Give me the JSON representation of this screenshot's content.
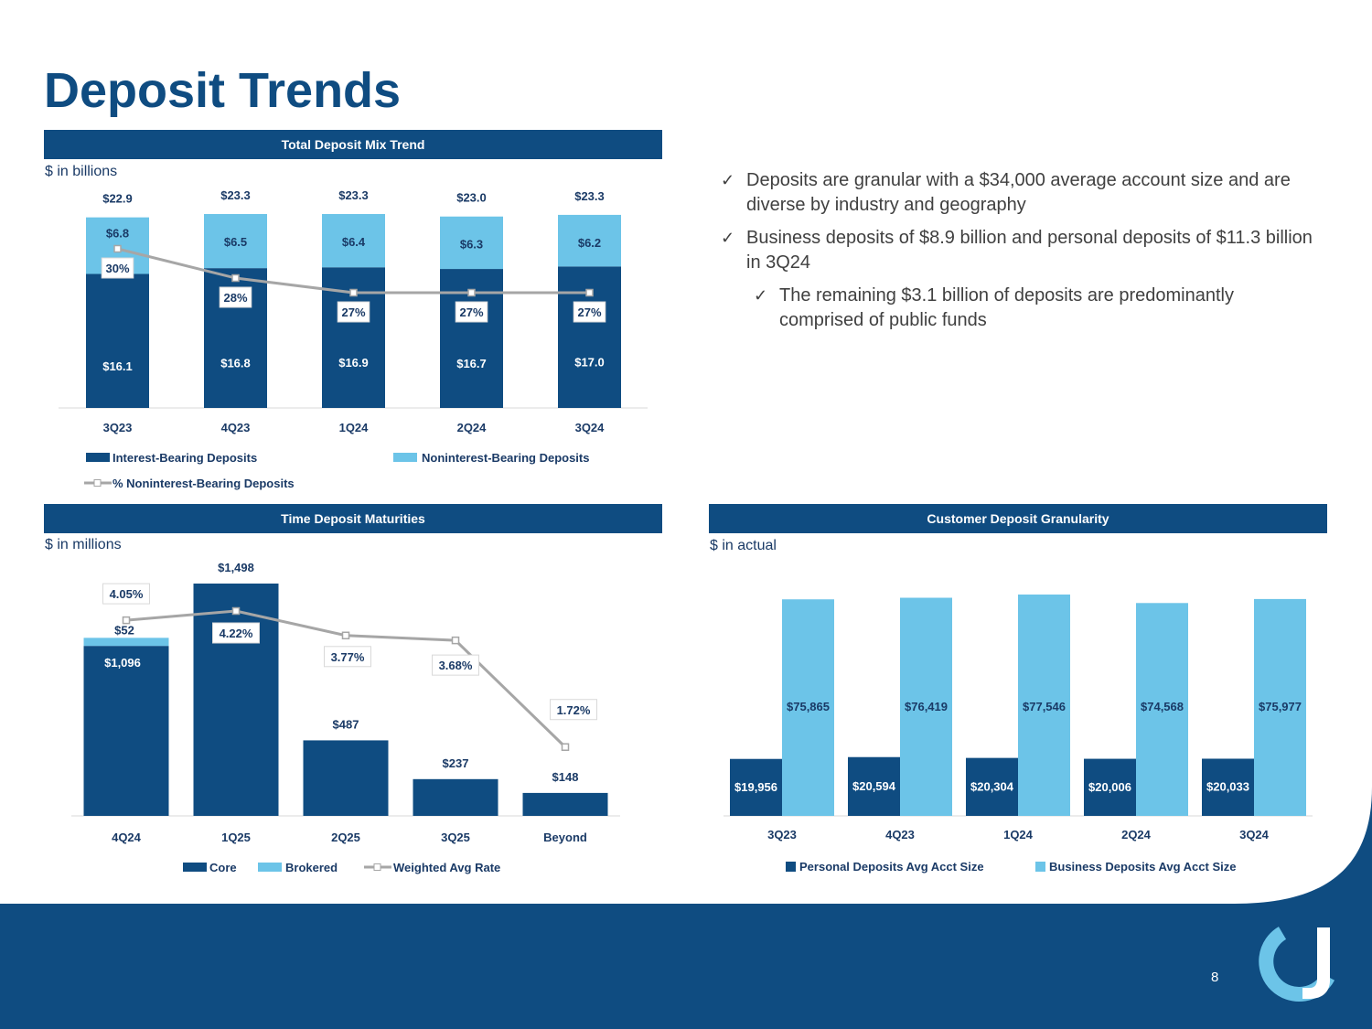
{
  "title": "Deposit Trends",
  "colors": {
    "dark": "#0f4c81",
    "light": "#6cc4e8",
    "line": "#a6a6a6",
    "footer": "#0f4c81"
  },
  "mix": {
    "header": "Total Deposit Mix Trend",
    "unit": "$ in billions",
    "chart_data": {
      "type": "bar",
      "stacked": true,
      "categories": [
        "3Q23",
        "4Q23",
        "1Q24",
        "2Q24",
        "3Q24"
      ],
      "totals": [
        "$22.9",
        "$23.3",
        "$23.3",
        "$23.0",
        "$23.3"
      ],
      "series": [
        {
          "name": "Interest-Bearing Deposits",
          "values": [
            16.1,
            16.8,
            16.9,
            16.7,
            17.0
          ],
          "labels": [
            "$16.1",
            "$16.8",
            "$16.9",
            "$16.7",
            "$17.0"
          ]
        },
        {
          "name": "Noninterest-Bearing Deposits",
          "values": [
            6.8,
            6.5,
            6.4,
            6.3,
            6.2
          ],
          "labels": [
            "$6.8",
            "$6.5",
            "$6.4",
            "$6.3",
            "$6.2"
          ]
        }
      ],
      "line": {
        "name": "% Noninterest-Bearing Deposits",
        "values": [
          30,
          28,
          27,
          27,
          27
        ],
        "labels": [
          "30%",
          "28%",
          "27%",
          "27%",
          "27%"
        ]
      },
      "ylim": [
        0,
        23.3
      ]
    }
  },
  "bullets": [
    {
      "text": "Deposits are granular with a $34,000 average account size and are diverse by industry and geography"
    },
    {
      "text": "Business deposits of $8.9 billion and personal deposits of $11.3 billion in 3Q24"
    },
    {
      "text": "The remaining $3.1 billion of deposits are predominantly comprised of public funds"
    }
  ],
  "checkmark": "✓",
  "tdm": {
    "header": "Time Deposit Maturities",
    "unit": "$ in millions",
    "chart_data": {
      "type": "bar",
      "stacked": true,
      "categories": [
        "4Q24",
        "1Q25",
        "2Q25",
        "3Q25",
        "Beyond"
      ],
      "series": [
        {
          "name": "Core",
          "values": [
            1096,
            1498,
            487,
            237,
            148
          ],
          "labels": [
            "$1,096",
            "$1,498",
            "$487",
            "$237",
            "$148"
          ]
        },
        {
          "name": "Brokered",
          "values": [
            52,
            0,
            0,
            0,
            0
          ],
          "labels": [
            "$52",
            "",
            "",
            "",
            ""
          ]
        }
      ],
      "line": {
        "name": "Weighted Avg Rate",
        "values": [
          4.05,
          4.22,
          3.77,
          3.68,
          1.72
        ],
        "labels": [
          "4.05%",
          "4.22%",
          "3.77%",
          "3.68%",
          "1.72%"
        ]
      },
      "ylim": [
        0,
        1498
      ]
    }
  },
  "gran": {
    "header": "Customer Deposit Granularity",
    "unit": "$ in actual",
    "chart_data": {
      "type": "bar",
      "grouped": true,
      "categories": [
        "3Q23",
        "4Q23",
        "1Q24",
        "2Q24",
        "3Q24"
      ],
      "series": [
        {
          "name": "Personal Deposits Avg Acct Size",
          "values": [
            19956,
            20594,
            20304,
            20006,
            20033
          ],
          "labels": [
            "$19,956",
            "$20,594",
            "$20,304",
            "$20,006",
            "$20,033"
          ]
        },
        {
          "name": "Business Deposits Avg Acct Size",
          "values": [
            75865,
            76419,
            77546,
            74568,
            75977
          ],
          "labels": [
            "$75,865",
            "$76,419",
            "$77,546",
            "$74,568",
            "$75,977"
          ]
        }
      ],
      "ylim": [
        0,
        77546
      ]
    }
  },
  "page_number": "8"
}
